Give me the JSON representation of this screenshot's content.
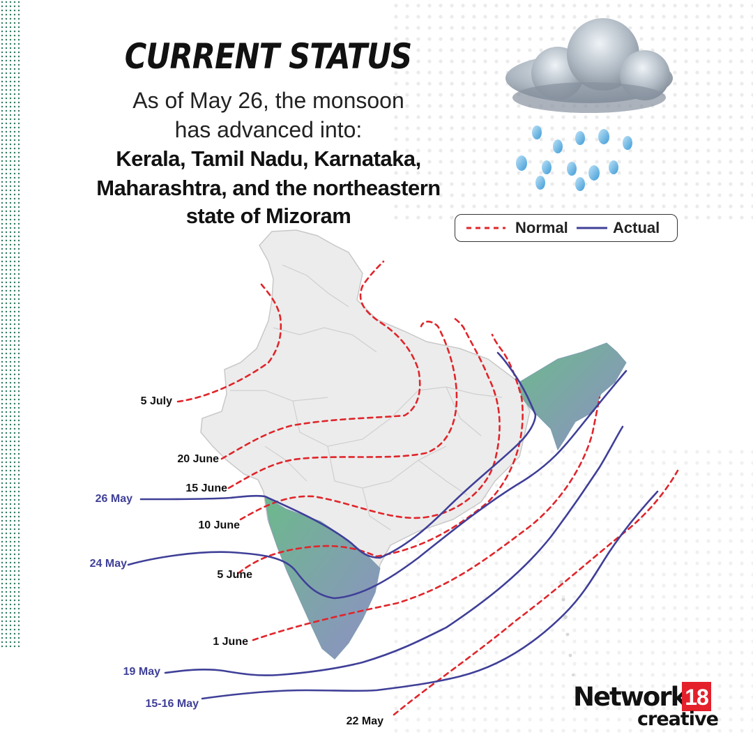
{
  "header": {
    "title": "CURRENT STATUS",
    "subtitle_line1": "As of May 26, the monsoon",
    "subtitle_line2": "has advanced into:",
    "regions_line1": "Kerala, Tamil Nadu, Karnataka,",
    "regions_line2": "Maharashtra, and the northeastern",
    "regions_line3": "state of Mizoram"
  },
  "legend": {
    "normal_label": "Normal",
    "actual_label": "Actual",
    "normal_color": "#e0252a",
    "actual_color": "#3f3f98"
  },
  "normal_labels": {
    "jul5": "5 July",
    "jun20": "20 June",
    "jun15": "15 June",
    "jun10": "10 June",
    "jun5": "5 June",
    "jun1": "1 June",
    "may22": "22 May"
  },
  "actual_labels": {
    "may26": "26 May",
    "may24": "24 May",
    "may19": "19 May",
    "may15_16": "15-16 May"
  },
  "colors": {
    "map_fill": "#ececec",
    "map_border": "#c8c8c8",
    "covered_start": "#6cb98c",
    "covered_end": "#8f8fc6",
    "label_text": "#111111",
    "actual_label_text": "#3f3f98"
  },
  "icons": {
    "weather": "rain-cloud-icon"
  },
  "brand": {
    "name": "Network",
    "number": "18",
    "tagline": "creative"
  }
}
